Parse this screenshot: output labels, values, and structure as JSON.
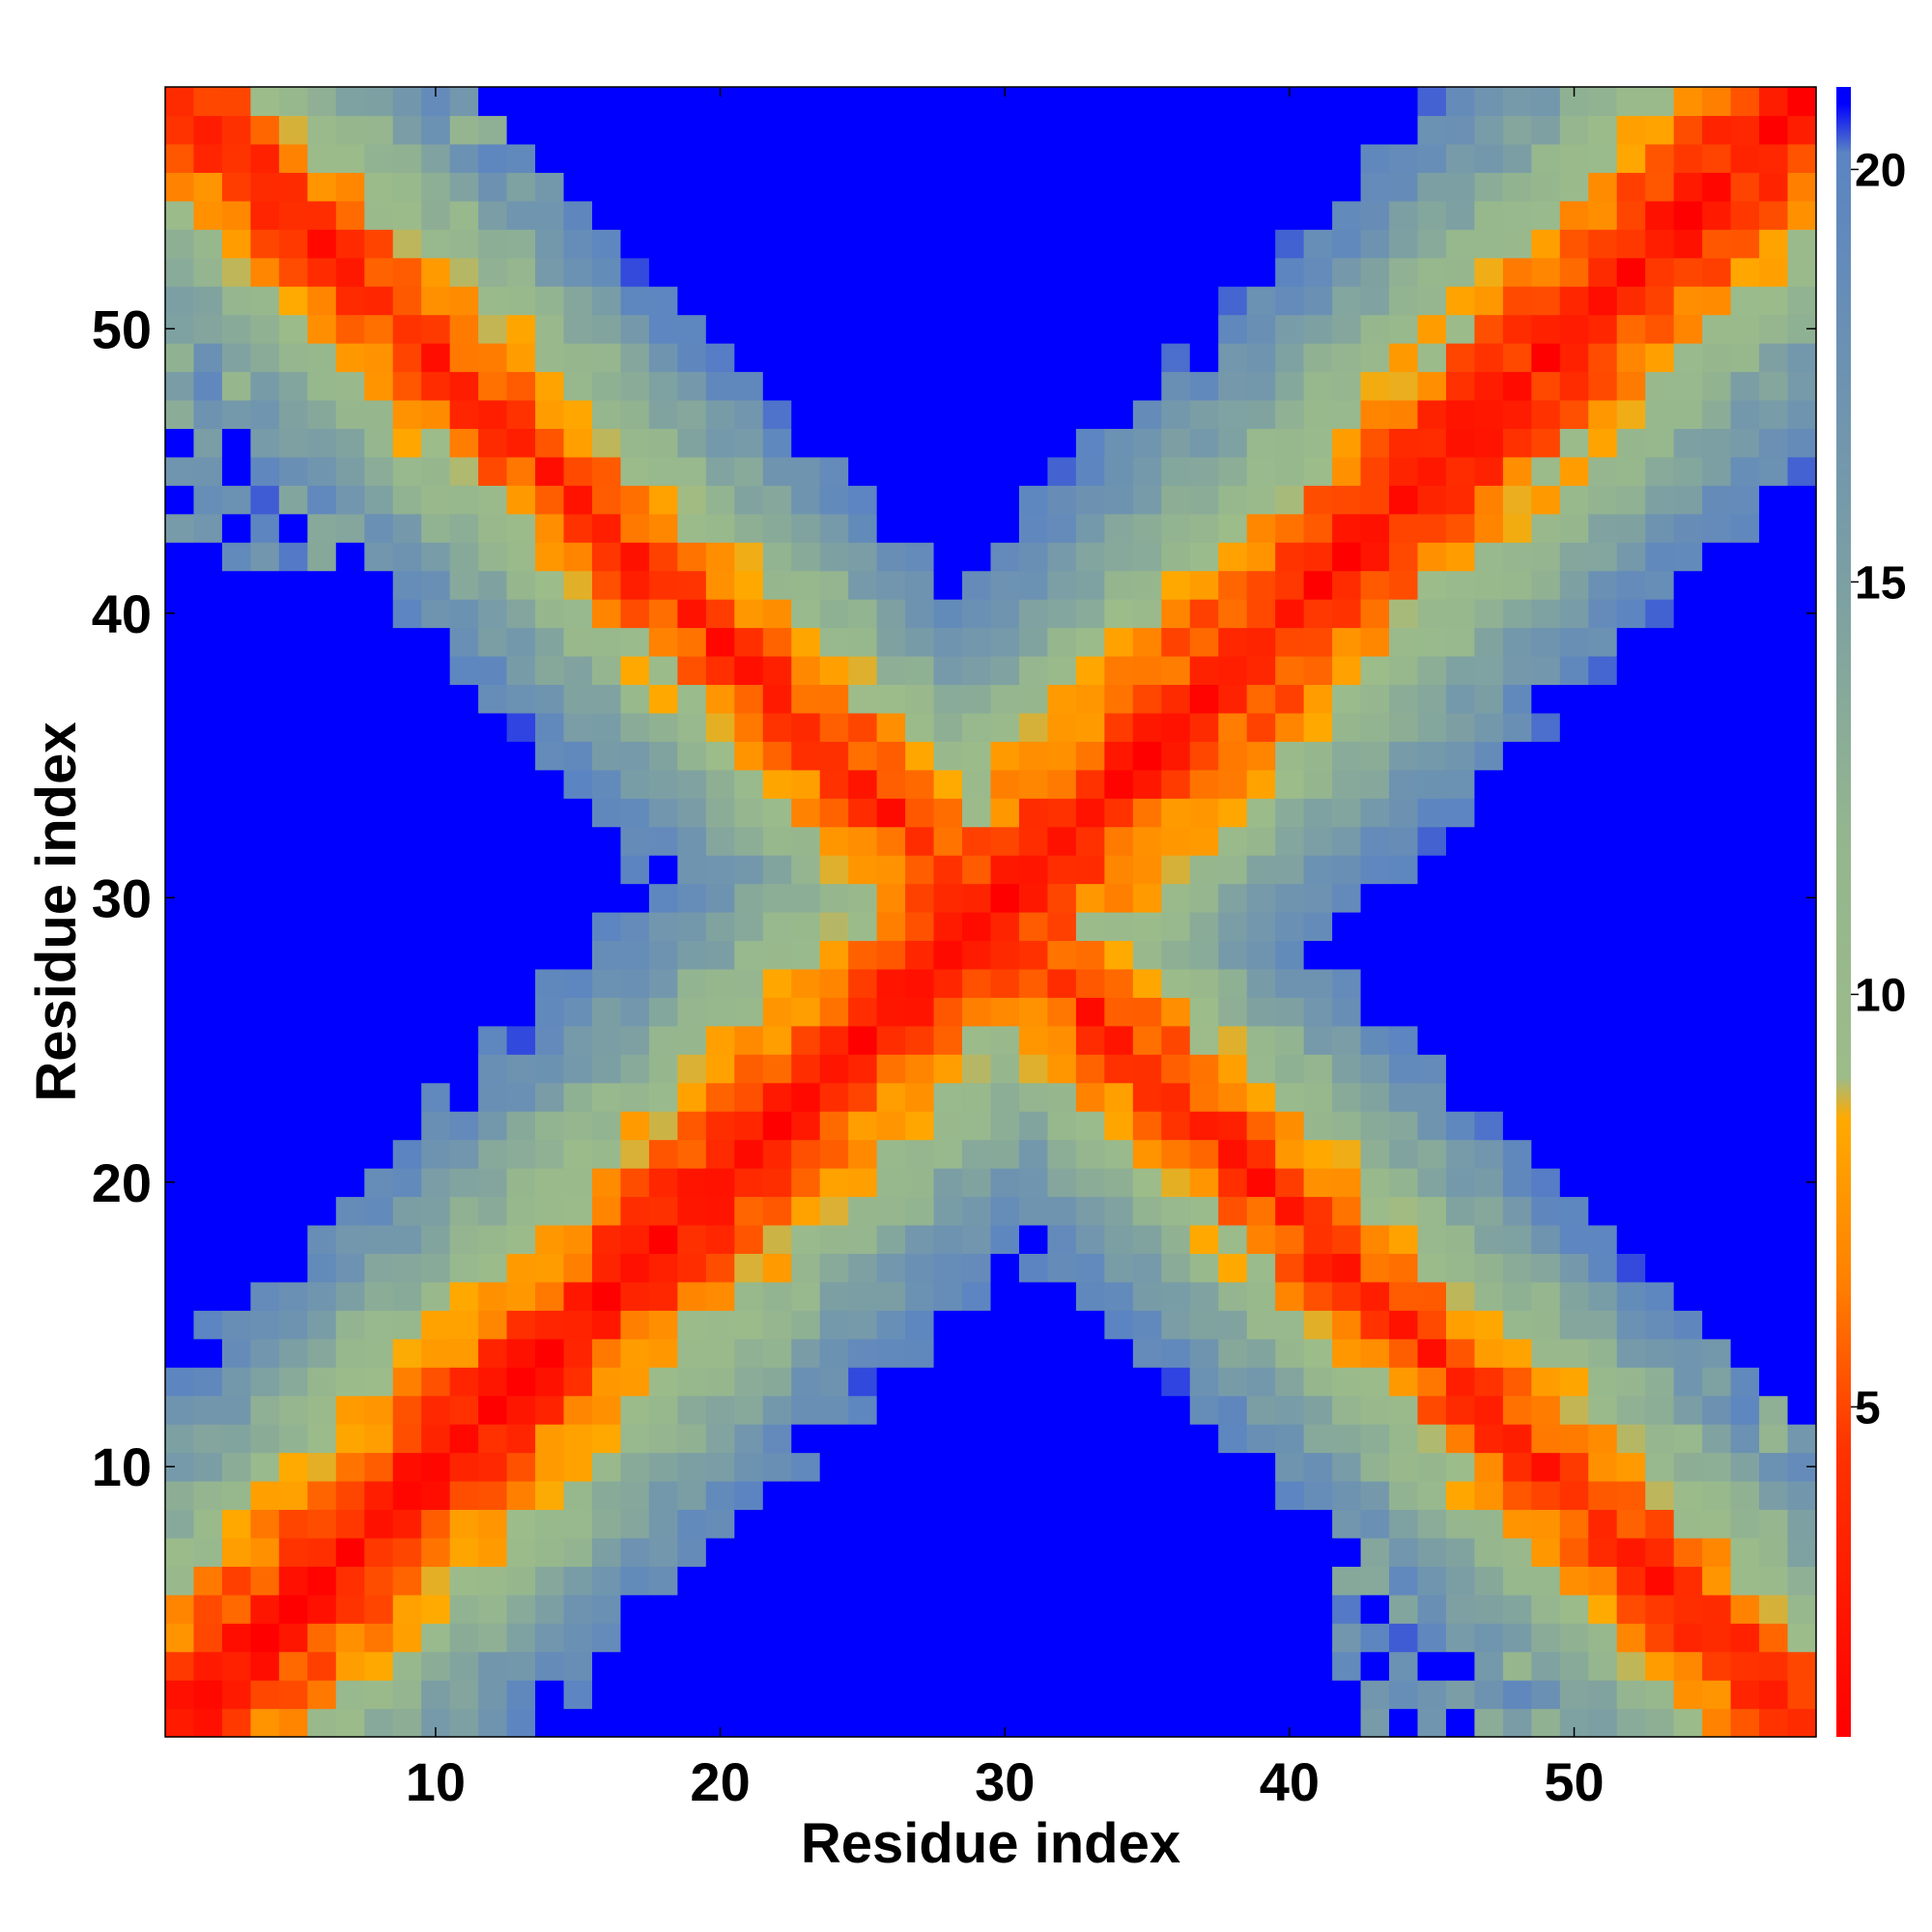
{
  "chart_data": {
    "type": "heatmap",
    "title": "",
    "xlabel": "Residue index",
    "ylabel": "Residue index",
    "n_residues": 58,
    "x_range": [
      0.5,
      58.5
    ],
    "y_range": [
      0.5,
      58.5
    ],
    "x_ticks": [
      10,
      20,
      30,
      40,
      50
    ],
    "y_ticks": [
      10,
      20,
      30,
      40,
      50
    ],
    "colorbar": {
      "range": [
        1,
        21
      ],
      "ticks": [
        5,
        10,
        15,
        20
      ],
      "stops": [
        {
          "value": 1,
          "color": "#ff0000"
        },
        {
          "value": 4.5,
          "color": "#ff3300"
        },
        {
          "value": 6.5,
          "color": "#ff8000"
        },
        {
          "value": 8.5,
          "color": "#ffaa00"
        },
        {
          "value": 9.0,
          "color": "#9cbc8a"
        },
        {
          "value": 12.0,
          "color": "#94b58f"
        },
        {
          "value": 15.0,
          "color": "#7c9fa4"
        },
        {
          "value": 18.0,
          "color": "#6a90b4"
        },
        {
          "value": 20.2,
          "color": "#5b84c2"
        },
        {
          "value": 20.8,
          "color": "#0000ff"
        },
        {
          "value": 21,
          "color": "#0000ff"
        }
      ]
    },
    "cutoff": 20.5,
    "saturated_color": "#0000ff",
    "values_description_note": "",
    "values_model": {
      "kind": "symmetric_distance_map",
      "chain_a_end": 29,
      "chain_b_start": 29,
      "diagonal_step": 1.45,
      "cross_step": 1.7,
      "cross_offset": 59
    }
  },
  "colors": {
    "background": "#ffffff",
    "frame": "#000000"
  }
}
